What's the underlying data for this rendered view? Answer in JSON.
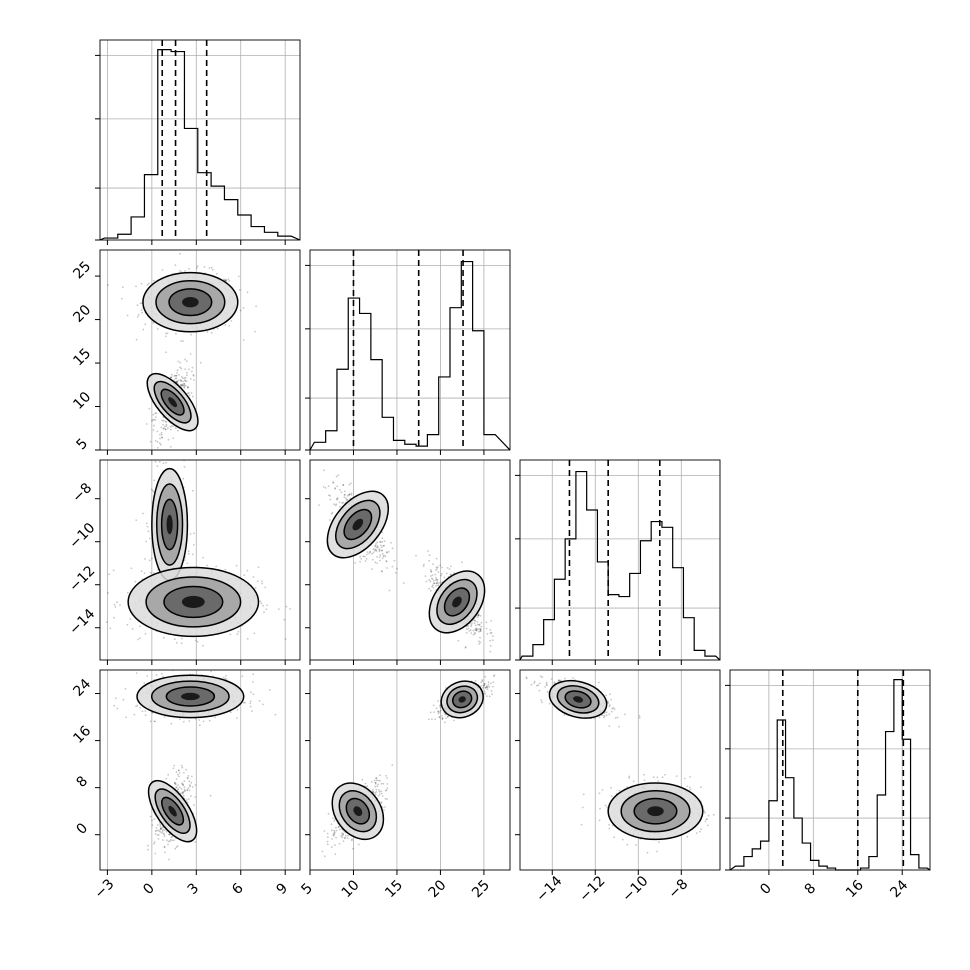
{
  "chart_data": {
    "type": "corner",
    "dimensions": 4,
    "grid": true,
    "histograms": [
      {
        "param_index": 0,
        "xlim": [
          -3.5,
          10
        ],
        "quantile_lines": [
          0.7,
          1.6,
          3.7
        ],
        "x_ticks": [
          "-3",
          "0",
          "3",
          "6",
          "9"
        ],
        "x_tick_values": [
          -3,
          0,
          3,
          6,
          9
        ],
        "bins": [
          -3.2,
          -2.3,
          -1.4,
          -0.5,
          0.4,
          1.3,
          2.2,
          3.1,
          4.0,
          4.9,
          5.8,
          6.7,
          7.6,
          8.5
        ],
        "counts": [
          0.01,
          0.03,
          0.12,
          0.34,
          0.99,
          0.98,
          0.58,
          0.35,
          0.28,
          0.21,
          0.13,
          0.07,
          0.04,
          0.02
        ]
      },
      {
        "param_index": 1,
        "xlim": [
          5,
          28
        ],
        "quantile_lines": [
          10.0,
          17.5,
          22.6
        ],
        "x_ticks": [
          "5",
          "10",
          "15",
          "20",
          "25"
        ],
        "x_tick_values": [
          5,
          10,
          15,
          20,
          25
        ],
        "bins": [
          5.5,
          6.8,
          8.1,
          9.4,
          10.7,
          12.0,
          13.3,
          14.6,
          15.9,
          17.2,
          18.5,
          19.8,
          21.1,
          22.4,
          23.7,
          25.0
        ],
        "counts": [
          0.04,
          0.1,
          0.42,
          0.79,
          0.71,
          0.47,
          0.17,
          0.05,
          0.03,
          0.02,
          0.08,
          0.38,
          0.74,
          0.98,
          0.62,
          0.08
        ]
      },
      {
        "param_index": 2,
        "xlim": [
          -15.5,
          -6.2
        ],
        "quantile_lines": [
          -13.2,
          -11.4,
          -9.0
        ],
        "x_ticks": [
          "-14",
          "-12",
          "-10",
          "-8"
        ],
        "x_tick_values": [
          -14,
          -12,
          -10,
          -8
        ],
        "bins": [
          -15.4,
          -14.9,
          -14.4,
          -13.9,
          -13.4,
          -12.9,
          -12.4,
          -11.9,
          -11.4,
          -10.9,
          -10.4,
          -9.9,
          -9.4,
          -8.9,
          -8.4,
          -7.9,
          -7.4,
          -6.9
        ],
        "counts": [
          0.02,
          0.08,
          0.21,
          0.42,
          0.63,
          0.98,
          0.78,
          0.51,
          0.34,
          0.33,
          0.45,
          0.62,
          0.72,
          0.69,
          0.48,
          0.22,
          0.05,
          0.02
        ]
      },
      {
        "param_index": 3,
        "xlim": [
          -7,
          29
        ],
        "quantile_lines": [
          2.5,
          16.0,
          24.2
        ],
        "x_ticks": [
          "0",
          "8",
          "16",
          "24"
        ],
        "x_tick_values": [
          0,
          8,
          16,
          24
        ],
        "bins": [
          -6.0,
          -4.5,
          -3.0,
          -1.5,
          0.0,
          1.5,
          3.0,
          4.5,
          6.0,
          7.5,
          9.0,
          10.5,
          12.0,
          13.5,
          15.0,
          16.5,
          18.0,
          19.5,
          21.0,
          22.5,
          24.0,
          25.5,
          27.0
        ],
        "counts": [
          0.02,
          0.07,
          0.11,
          0.15,
          0.36,
          0.78,
          0.48,
          0.27,
          0.14,
          0.05,
          0.02,
          0.01,
          0.0,
          0.0,
          0.0,
          0.01,
          0.07,
          0.39,
          0.72,
          0.99,
          0.68,
          0.08,
          0.01
        ]
      }
    ],
    "scatter_panels": [
      {
        "row": 1,
        "col": 0,
        "xlim": [
          -3.5,
          10
        ],
        "ylim": [
          5,
          28
        ],
        "y_ticks": [
          "5",
          "10",
          "15",
          "20",
          "25"
        ],
        "y_tick_values": [
          5,
          10,
          15,
          20,
          25
        ],
        "clusters": [
          {
            "center": [
              2.6,
              22.0
            ],
            "spread": [
              1.6,
              1.7
            ],
            "tilt": 0.0,
            "weight": 0.55
          },
          {
            "center": [
              1.4,
              10.5
            ],
            "spread": [
              0.6,
              2.0
            ],
            "tilt": 0.5,
            "weight": 0.45
          }
        ]
      },
      {
        "row": 2,
        "col": 0,
        "xlim": [
          -3.5,
          10
        ],
        "ylim": [
          -15.5,
          -6.2
        ],
        "y_ticks": [
          "-14",
          "-12",
          "-10",
          "-8"
        ],
        "y_tick_values": [
          -14,
          -12,
          -10,
          -8
        ],
        "clusters": [
          {
            "center": [
              1.2,
              -9.2
            ],
            "spread": [
              0.6,
              1.3
            ],
            "tilt": 0.0,
            "weight": 0.45
          },
          {
            "center": [
              2.8,
              -12.8
            ],
            "spread": [
              2.2,
              0.8
            ],
            "tilt": 0.0,
            "weight": 0.55
          }
        ]
      },
      {
        "row": 2,
        "col": 1,
        "xlim": [
          5,
          28
        ],
        "ylim": [
          -15.5,
          -6.2
        ],
        "clusters": [
          {
            "center": [
              10.5,
              -9.2
            ],
            "spread": [
              1.6,
              0.9
            ],
            "tilt": -0.7,
            "weight": 0.45
          },
          {
            "center": [
              21.9,
              -12.8
            ],
            "spread": [
              1.6,
              0.8
            ],
            "tilt": -0.7,
            "weight": 0.55
          }
        ]
      },
      {
        "row": 3,
        "col": 0,
        "xlim": [
          -3.5,
          10
        ],
        "ylim": [
          -6,
          28
        ],
        "y_ticks": [
          "0",
          "8",
          "16",
          "24"
        ],
        "y_tick_values": [
          0,
          8,
          16,
          24
        ],
        "clusters": [
          {
            "center": [
              2.6,
              23.5
            ],
            "spread": [
              1.8,
              1.8
            ],
            "tilt": 0.0,
            "weight": 0.55
          },
          {
            "center": [
              1.4,
              4.0
            ],
            "spread": [
              0.6,
              3.0
            ],
            "tilt": 0.4,
            "weight": 0.45
          }
        ]
      },
      {
        "row": 3,
        "col": 1,
        "xlim": [
          5,
          28
        ],
        "ylim": [
          -6,
          28
        ],
        "clusters": [
          {
            "center": [
              22.5,
              23.0
            ],
            "spread": [
              1.5,
              1.5
            ],
            "tilt": 0.7,
            "weight": 0.55
          },
          {
            "center": [
              10.5,
              4.0
            ],
            "spread": [
              1.6,
              2.6
            ],
            "tilt": 0.75,
            "weight": 0.45
          }
        ]
      },
      {
        "row": 3,
        "col": 2,
        "xlim": [
          -15.5,
          -6.2
        ],
        "ylim": [
          -6,
          28
        ],
        "clusters": [
          {
            "center": [
              -12.8,
              23.0
            ],
            "spread": [
              0.8,
              1.5
            ],
            "tilt": -0.6,
            "weight": 0.5
          },
          {
            "center": [
              -9.2,
              4.0
            ],
            "spread": [
              1.1,
              2.4
            ],
            "tilt": 0.0,
            "weight": 0.5
          }
        ]
      }
    ]
  }
}
